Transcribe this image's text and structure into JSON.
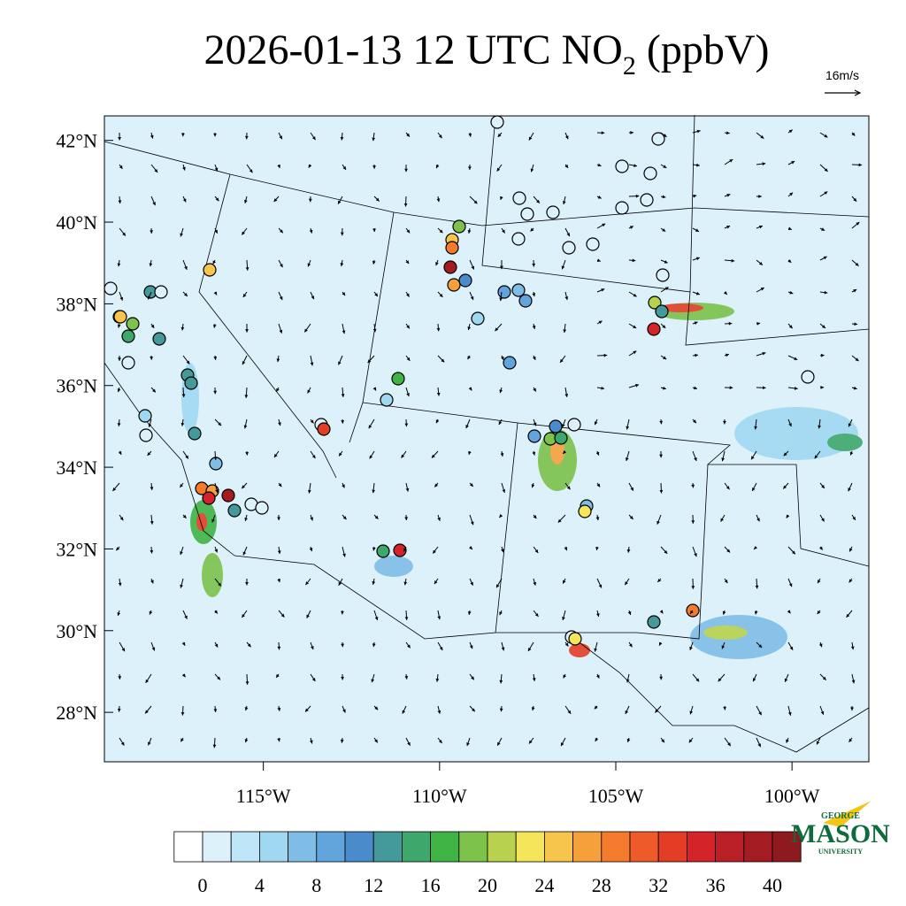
{
  "chart_data": {
    "type": "map",
    "title": {
      "main": "2026-01-13 12 UTC NO",
      "subscript": "2",
      "unit": " (ppbV)"
    },
    "wind_scale_label": "16m/s",
    "xlim": [
      -119.51,
      -97.82
    ],
    "ylim": [
      26.79,
      42.6
    ],
    "xticks": [
      {
        "value": -115,
        "label": "115°W"
      },
      {
        "value": -110,
        "label": "110°W"
      },
      {
        "value": -105,
        "label": "105°W"
      },
      {
        "value": -100,
        "label": "100°W"
      }
    ],
    "yticks": [
      {
        "value": 42,
        "label": "42°N"
      },
      {
        "value": 40,
        "label": "40°N"
      },
      {
        "value": 38,
        "label": "38°N"
      },
      {
        "value": 36,
        "label": "36°N"
      },
      {
        "value": 34,
        "label": "34°N"
      },
      {
        "value": 32,
        "label": "32°N"
      },
      {
        "value": 30,
        "label": "30°N"
      },
      {
        "value": 28,
        "label": "28°N"
      }
    ],
    "colorbar": {
      "levels": [
        0,
        2,
        4,
        6,
        8,
        10,
        12,
        14,
        16,
        18,
        20,
        22,
        24,
        26,
        28,
        30,
        32,
        34,
        36,
        38,
        40
      ],
      "ticks": [
        0,
        4,
        8,
        12,
        16,
        20,
        24,
        28,
        32,
        36,
        40
      ],
      "colors": [
        "#ffffff",
        "#ddf1fb",
        "#bfe6f8",
        "#a0d8f2",
        "#80bde6",
        "#62a5dc",
        "#4a8ccb",
        "#449a9b",
        "#3ea76c",
        "#3fb445",
        "#7cc24b",
        "#b8d14e",
        "#f5e55a",
        "#f7c44c",
        "#f6a03c",
        "#f47a2e",
        "#ee5a29",
        "#e33d25",
        "#d5232a",
        "#bb1f26",
        "#a51b22",
        "#8e1a1f"
      ]
    },
    "logo": {
      "top": "GEORGE",
      "name": "MASON",
      "bottom": "UNIVERSITY"
    }
  }
}
